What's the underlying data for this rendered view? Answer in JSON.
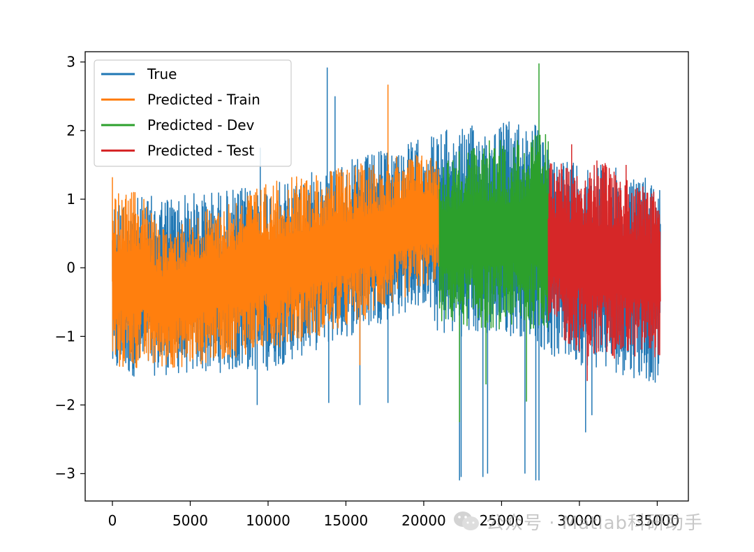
{
  "chart_data": {
    "type": "line",
    "title": "",
    "xlabel": "",
    "ylabel": "",
    "xlim": [
      -1750,
      37000
    ],
    "ylim": [
      -3.4,
      3.15
    ],
    "x_ticks": [
      0,
      5000,
      10000,
      15000,
      20000,
      25000,
      30000,
      35000
    ],
    "y_ticks": [
      3,
      2,
      1,
      0,
      -1,
      -2,
      -3
    ],
    "x_tick_labels": [
      "0",
      "5000",
      "10000",
      "15000",
      "20000",
      "25000",
      "30000",
      "35000"
    ],
    "y_tick_labels": [
      "3",
      "2",
      "1",
      "0",
      "−1",
      "−2",
      "−3"
    ],
    "grid": false,
    "legend_position": "upper-left",
    "series": [
      {
        "name": "True",
        "color": "#1f77b4",
        "x_range": [
          0,
          35200
        ],
        "trend": {
          "upper": [
            [
              0,
              1.0
            ],
            [
              10000,
              1.2
            ],
            [
              20000,
              1.9
            ],
            [
              21000,
              2.0
            ],
            [
              27000,
              2.2
            ],
            [
              28000,
              1.7
            ],
            [
              35200,
              1.3
            ]
          ],
          "lower": [
            [
              0,
              -1.6
            ],
            [
              10000,
              -1.5
            ],
            [
              20000,
              -0.55
            ],
            [
              21000,
              -1.0
            ],
            [
              27000,
              -1.0
            ],
            [
              28000,
              -1.3
            ],
            [
              35200,
              -1.7
            ]
          ]
        },
        "spikes": [
          [
            9300,
            -2.0
          ],
          [
            13800,
            2.92
          ],
          [
            13900,
            -1.97
          ],
          [
            14300,
            2.5
          ],
          [
            15900,
            -2.0
          ],
          [
            17700,
            -1.97
          ],
          [
            22300,
            -3.1
          ],
          [
            22400,
            -3.05
          ],
          [
            23800,
            -3.05
          ],
          [
            24100,
            -3.0
          ],
          [
            26500,
            -3.0
          ],
          [
            27200,
            -3.1
          ],
          [
            27400,
            -3.1
          ],
          [
            30400,
            -2.4
          ],
          [
            30800,
            -2.15
          ],
          [
            9500,
            1.75
          ]
        ]
      },
      {
        "name": "Predicted - Train",
        "color": "#ff7f0e",
        "x_range": [
          0,
          21000
        ],
        "trend": {
          "upper": [
            [
              0,
              1.1
            ],
            [
              2000,
              1.1
            ],
            [
              3000,
              0.55
            ],
            [
              10000,
              1.25
            ],
            [
              20000,
              1.7
            ],
            [
              21000,
              1.6
            ]
          ],
          "lower": [
            [
              0,
              -1.5
            ],
            [
              5000,
              -1.45
            ],
            [
              10000,
              -1.2
            ],
            [
              15000,
              -0.9
            ],
            [
              20000,
              -0.3
            ],
            [
              21000,
              -0.2
            ]
          ]
        },
        "spikes": [
          [
            0,
            1.32
          ],
          [
            17700,
            2.67
          ],
          [
            15900,
            -1.42
          ],
          [
            2500,
            0.6
          ]
        ]
      },
      {
        "name": "Predicted - Dev",
        "color": "#2ca02c",
        "x_range": [
          21000,
          28000
        ],
        "trend": {
          "upper": [
            [
              21000,
              1.6
            ],
            [
              24000,
              1.85
            ],
            [
              28000,
              1.95
            ]
          ],
          "lower": [
            [
              21000,
              -0.8
            ],
            [
              24000,
              -0.9
            ],
            [
              28000,
              -0.9
            ]
          ]
        },
        "spikes": [
          [
            22300,
            -2.25
          ],
          [
            27400,
            2.98
          ],
          [
            26600,
            -1.95
          ],
          [
            24000,
            -1.7
          ]
        ]
      },
      {
        "name": "Predicted - Test",
        "color": "#d62728",
        "x_range": [
          28000,
          35200
        ],
        "trend": {
          "upper": [
            [
              28000,
              1.6
            ],
            [
              31000,
              1.6
            ],
            [
              35200,
              1.1
            ]
          ],
          "lower": [
            [
              28000,
              -1.0
            ],
            [
              31000,
              -1.35
            ],
            [
              35200,
              -1.3
            ]
          ]
        },
        "spikes": [
          [
            30500,
            -1.65
          ],
          [
            29500,
            1.8
          ],
          [
            33000,
            1.5
          ]
        ]
      }
    ]
  },
  "watermark": {
    "icon": "wechat-icon",
    "text": "公众号 · Matlab科研助手"
  }
}
